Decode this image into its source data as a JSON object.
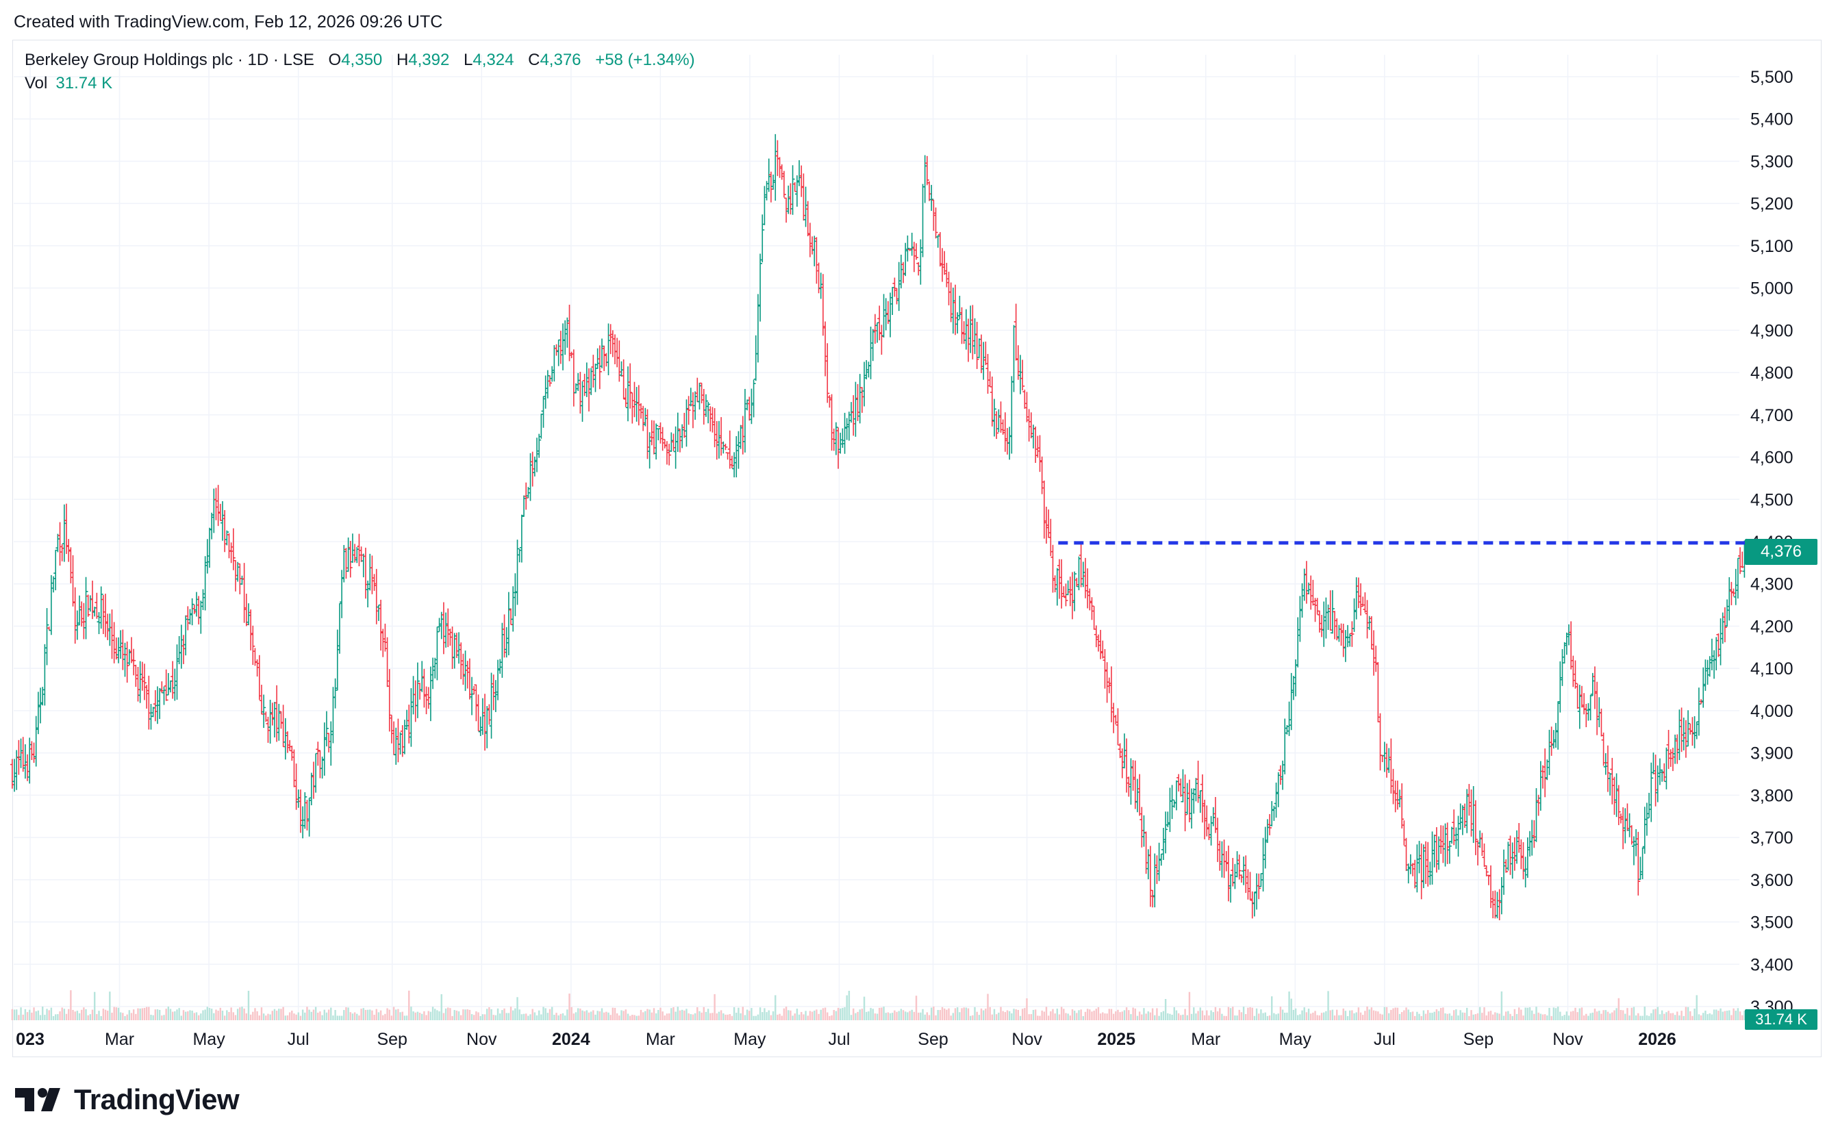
{
  "header": {
    "created_text": "Created with TradingView.com, Feb 12, 2026 09:26 UTC"
  },
  "legend": {
    "symbol": "Berkeley Group Holdings plc · 1D · LSE",
    "open_label": "O",
    "open_value": "4,350",
    "high_label": "H",
    "high_value": "4,392",
    "low_label": "L",
    "low_value": "4,324",
    "close_label": "C",
    "close_value": "4,376",
    "change": "+58 (+1.34%)",
    "vol_label": "Vol",
    "vol_value": "31.74 K"
  },
  "price_tag": "4,376",
  "vol_tag": "31.74 K",
  "brand": {
    "name": "TradingView"
  },
  "colors": {
    "up": "#089981",
    "down": "#f23645",
    "grid": "#f0f3fa",
    "level": "#2337e6",
    "volume_up": "#b7e4dc",
    "volume_down": "#f8c4c8"
  },
  "chart_data": {
    "type": "candlestick",
    "symbol": "Berkeley Group Holdings plc",
    "interval": "1D",
    "exchange": "LSE",
    "ylim": [
      3300,
      5560
    ],
    "y_ticks": [
      "5,500",
      "5,400",
      "5,300",
      "5,200",
      "5,100",
      "5,000",
      "4,900",
      "4,800",
      "4,700",
      "4,600",
      "4,500",
      "4,400",
      "4,300",
      "4,200",
      "4,100",
      "4,000",
      "3,900",
      "3,800",
      "3,700",
      "3,600",
      "3,500",
      "3,400",
      "3,300"
    ],
    "x_ticks": [
      {
        "label": "023",
        "bold": true,
        "t": 0.0
      },
      {
        "label": "Mar",
        "bold": false,
        "t": 2.0
      },
      {
        "label": "May",
        "bold": false,
        "t": 4.0
      },
      {
        "label": "Jul",
        "bold": false,
        "t": 6.0
      },
      {
        "label": "Sep",
        "bold": false,
        "t": 8.1
      },
      {
        "label": "Nov",
        "bold": false,
        "t": 10.1
      },
      {
        "label": "2024",
        "bold": true,
        "t": 12.1
      },
      {
        "label": "Mar",
        "bold": false,
        "t": 14.1
      },
      {
        "label": "May",
        "bold": false,
        "t": 16.1
      },
      {
        "label": "Jul",
        "bold": false,
        "t": 18.1
      },
      {
        "label": "Sep",
        "bold": false,
        "t": 20.2
      },
      {
        "label": "Nov",
        "bold": false,
        "t": 22.3
      },
      {
        "label": "2025",
        "bold": true,
        "t": 24.3
      },
      {
        "label": "Mar",
        "bold": false,
        "t": 26.3
      },
      {
        "label": "May",
        "bold": false,
        "t": 28.3
      },
      {
        "label": "Jul",
        "bold": false,
        "t": 30.3
      },
      {
        "label": "Sep",
        "bold": false,
        "t": 32.4
      },
      {
        "label": "Nov",
        "bold": false,
        "t": 34.4
      },
      {
        "label": "2026",
        "bold": true,
        "t": 36.4
      }
    ],
    "t_range": [
      -0.4,
      38.4
    ],
    "price_path": [
      [
        -0.4,
        3860
      ],
      [
        0.1,
        3900
      ],
      [
        0.3,
        4100
      ],
      [
        0.6,
        4400
      ],
      [
        0.8,
        4420
      ],
      [
        1.0,
        4200
      ],
      [
        1.3,
        4260
      ],
      [
        1.6,
        4240
      ],
      [
        1.9,
        4150
      ],
      [
        2.2,
        4110
      ],
      [
        2.5,
        4050
      ],
      [
        2.8,
        4000
      ],
      [
        3.0,
        4060
      ],
      [
        3.2,
        4060
      ],
      [
        3.5,
        4200
      ],
      [
        3.8,
        4250
      ],
      [
        4.0,
        4380
      ],
      [
        4.1,
        4480
      ],
      [
        4.3,
        4430
      ],
      [
        4.6,
        4350
      ],
      [
        4.9,
        4200
      ],
      [
        5.2,
        3980
      ],
      [
        5.5,
        3980
      ],
      [
        5.8,
        3920
      ],
      [
        6.0,
        3780
      ],
      [
        6.2,
        3760
      ],
      [
        6.4,
        3880
      ],
      [
        6.6,
        3920
      ],
      [
        6.8,
        4010
      ],
      [
        7.0,
        4350
      ],
      [
        7.3,
        4360
      ],
      [
        7.6,
        4310
      ],
      [
        7.9,
        4200
      ],
      [
        8.1,
        3900
      ],
      [
        8.4,
        3950
      ],
      [
        8.7,
        4060
      ],
      [
        8.9,
        4050
      ],
      [
        9.2,
        4200
      ],
      [
        9.5,
        4150
      ],
      [
        9.8,
        4060
      ],
      [
        10.1,
        3960
      ],
      [
        10.3,
        4020
      ],
      [
        10.5,
        4120
      ],
      [
        10.8,
        4250
      ],
      [
        11.0,
        4450
      ],
      [
        11.2,
        4580
      ],
      [
        11.4,
        4660
      ],
      [
        11.6,
        4780
      ],
      [
        11.8,
        4850
      ],
      [
        12.0,
        4900
      ],
      [
        12.2,
        4760
      ],
      [
        12.5,
        4760
      ],
      [
        12.8,
        4840
      ],
      [
        13.0,
        4860
      ],
      [
        13.2,
        4780
      ],
      [
        13.5,
        4720
      ],
      [
        13.8,
        4650
      ],
      [
        14.0,
        4650
      ],
      [
        14.3,
        4620
      ],
      [
        14.6,
        4650
      ],
      [
        14.9,
        4760
      ],
      [
        15.2,
        4700
      ],
      [
        15.4,
        4620
      ],
      [
        15.7,
        4580
      ],
      [
        16.0,
        4700
      ],
      [
        16.2,
        4760
      ],
      [
        16.4,
        5200
      ],
      [
        16.7,
        5300
      ],
      [
        16.9,
        5200
      ],
      [
        17.2,
        5260
      ],
      [
        17.5,
        5100
      ],
      [
        17.7,
        5000
      ],
      [
        17.9,
        4680
      ],
      [
        18.1,
        4620
      ],
      [
        18.3,
        4680
      ],
      [
        18.6,
        4760
      ],
      [
        18.9,
        4880
      ],
      [
        19.1,
        4920
      ],
      [
        19.4,
        5000
      ],
      [
        19.6,
        5100
      ],
      [
        19.9,
        5050
      ],
      [
        20.0,
        5330
      ],
      [
        20.2,
        5200
      ],
      [
        20.4,
        5050
      ],
      [
        20.6,
        4960
      ],
      [
        20.8,
        4920
      ],
      [
        21.0,
        4890
      ],
      [
        21.3,
        4840
      ],
      [
        21.5,
        4720
      ],
      [
        21.7,
        4660
      ],
      [
        21.9,
        4640
      ],
      [
        22.0,
        4880
      ],
      [
        22.2,
        4760
      ],
      [
        22.4,
        4660
      ],
      [
        22.6,
        4600
      ],
      [
        22.7,
        4450
      ],
      [
        22.9,
        4330
      ],
      [
        23.1,
        4280
      ],
      [
        23.3,
        4290
      ],
      [
        23.5,
        4340
      ],
      [
        23.7,
        4250
      ],
      [
        23.9,
        4150
      ],
      [
        24.1,
        4070
      ],
      [
        24.3,
        3950
      ],
      [
        24.5,
        3880
      ],
      [
        24.7,
        3820
      ],
      [
        24.9,
        3700
      ],
      [
        25.1,
        3570
      ],
      [
        25.3,
        3680
      ],
      [
        25.5,
        3780
      ],
      [
        25.7,
        3830
      ],
      [
        25.9,
        3760
      ],
      [
        26.1,
        3800
      ],
      [
        26.3,
        3740
      ],
      [
        26.5,
        3720
      ],
      [
        26.7,
        3620
      ],
      [
        26.9,
        3600
      ],
      [
        27.1,
        3620
      ],
      [
        27.3,
        3560
      ],
      [
        27.5,
        3580
      ],
      [
        27.7,
        3700
      ],
      [
        27.9,
        3800
      ],
      [
        28.1,
        3960
      ],
      [
        28.3,
        4100
      ],
      [
        28.5,
        4300
      ],
      [
        28.7,
        4260
      ],
      [
        28.9,
        4200
      ],
      [
        29.1,
        4220
      ],
      [
        29.3,
        4180
      ],
      [
        29.5,
        4150
      ],
      [
        29.7,
        4300
      ],
      [
        29.9,
        4200
      ],
      [
        30.1,
        4130
      ],
      [
        30.2,
        3900
      ],
      [
        30.4,
        3860
      ],
      [
        30.6,
        3790
      ],
      [
        30.8,
        3660
      ],
      [
        31.0,
        3620
      ],
      [
        31.2,
        3640
      ],
      [
        31.4,
        3660
      ],
      [
        31.6,
        3680
      ],
      [
        31.8,
        3700
      ],
      [
        32.0,
        3740
      ],
      [
        32.2,
        3780
      ],
      [
        32.4,
        3700
      ],
      [
        32.6,
        3620
      ],
      [
        32.8,
        3540
      ],
      [
        33.0,
        3640
      ],
      [
        33.2,
        3680
      ],
      [
        33.4,
        3640
      ],
      [
        33.6,
        3700
      ],
      [
        33.8,
        3840
      ],
      [
        34.0,
        3900
      ],
      [
        34.2,
        4020
      ],
      [
        34.4,
        4200
      ],
      [
        34.6,
        4000
      ],
      [
        34.8,
        4000
      ],
      [
        35.0,
        4050
      ],
      [
        35.2,
        3900
      ],
      [
        35.4,
        3820
      ],
      [
        35.6,
        3740
      ],
      [
        35.8,
        3700
      ],
      [
        36.0,
        3620
      ],
      [
        36.2,
        3780
      ],
      [
        36.4,
        3860
      ],
      [
        36.6,
        3880
      ],
      [
        36.8,
        3900
      ],
      [
        37.0,
        3960
      ],
      [
        37.2,
        3940
      ],
      [
        37.4,
        4040
      ],
      [
        37.6,
        4120
      ],
      [
        37.8,
        4170
      ],
      [
        38.0,
        4250
      ],
      [
        38.2,
        4330
      ],
      [
        38.4,
        4376
      ]
    ],
    "price_series_shown_as": "daily OHLC bars (series not named on chart)",
    "resistance_level": {
      "value": 4397,
      "t_start": 23.0,
      "t_end": 38.4,
      "style": "dashed"
    },
    "last_close": 4376,
    "grid": true,
    "legend_position": "top-left"
  }
}
